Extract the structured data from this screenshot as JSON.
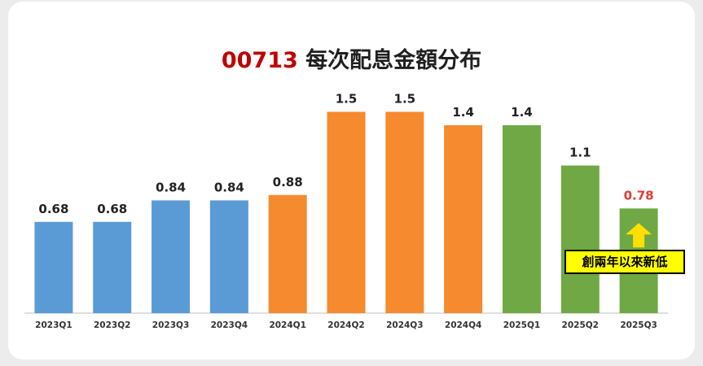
{
  "title": {
    "code": "00713",
    "text": "每次配息金額分布"
  },
  "callout": {
    "text": "創兩年以來新低"
  },
  "colors": {
    "blue": "#5b9bd5",
    "orange": "#f58a2e",
    "green": "#6fa844",
    "highlight_label": "#e03a2f",
    "arrow": "#ffe000"
  },
  "chart_data": {
    "type": "bar",
    "categories": [
      "2023Q1",
      "2023Q2",
      "2023Q3",
      "2023Q4",
      "2024Q1",
      "2024Q2",
      "2024Q3",
      "2024Q4",
      "2025Q1",
      "2025Q2",
      "2025Q3"
    ],
    "values": [
      0.68,
      0.68,
      0.84,
      0.84,
      0.88,
      1.5,
      1.5,
      1.4,
      1.4,
      1.1,
      0.78
    ],
    "labels": [
      "0.68",
      "0.68",
      "0.84",
      "0.84",
      "0.88",
      "1.5",
      "1.5",
      "1.4",
      "1.4",
      "1.1",
      "0.78"
    ],
    "bar_colors": [
      "blue",
      "blue",
      "blue",
      "blue",
      "orange",
      "orange",
      "orange",
      "orange",
      "green",
      "green",
      "green"
    ],
    "highlight_index": 10,
    "title": "00713 每次配息金額分布",
    "xlabel": "",
    "ylabel": "",
    "ylim": [
      0,
      1.6
    ],
    "grid": false,
    "legend": "none"
  }
}
